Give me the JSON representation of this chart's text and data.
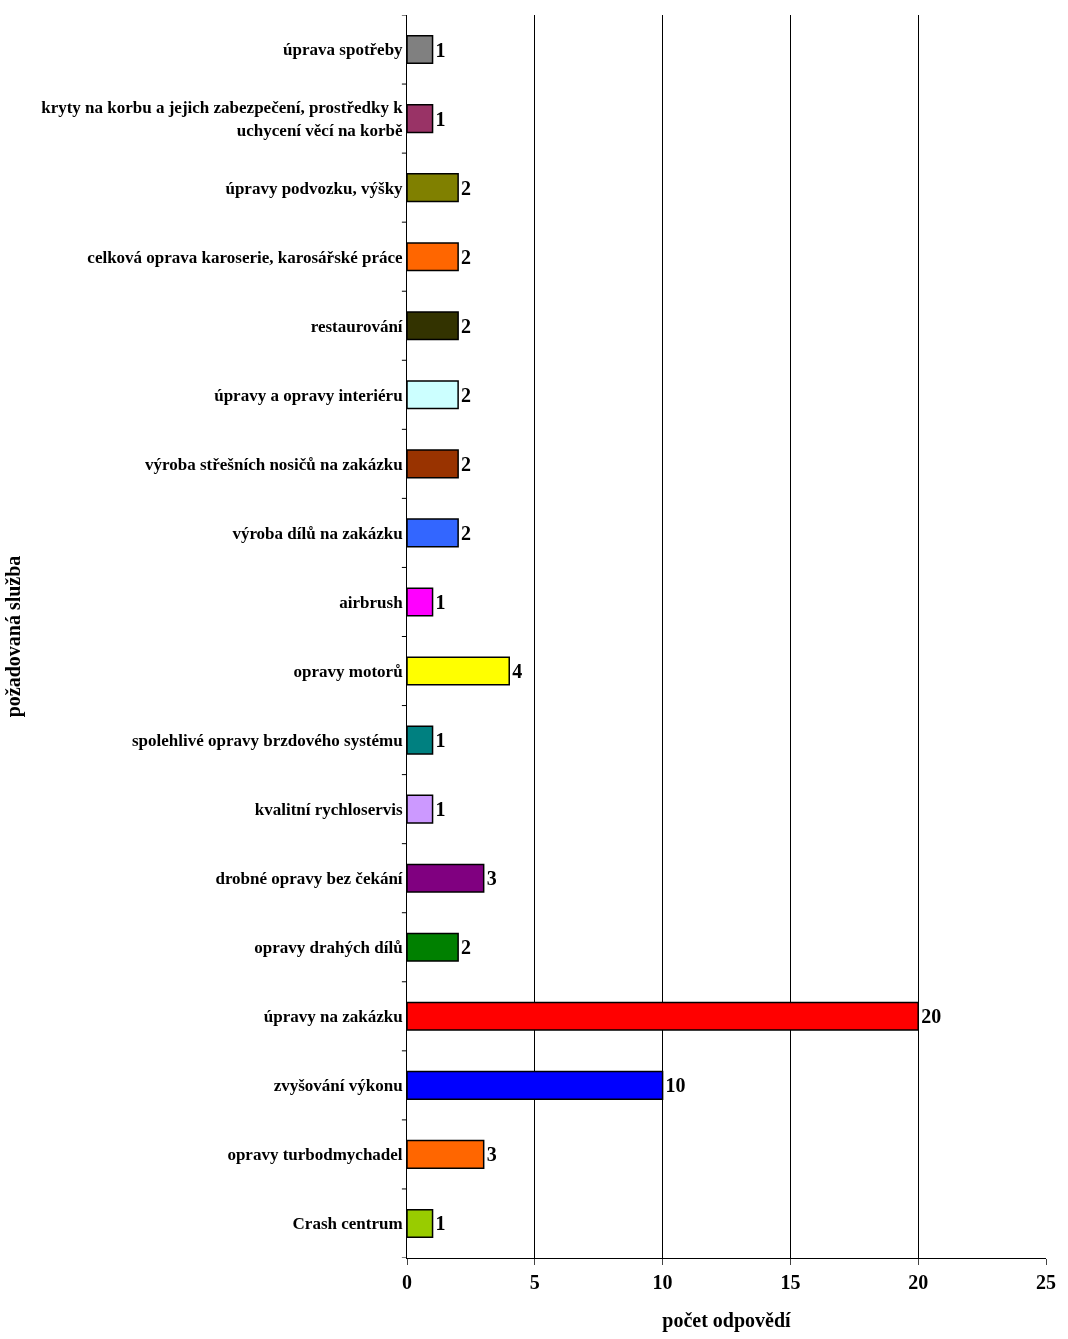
{
  "chart_data": {
    "type": "bar",
    "orientation": "horizontal",
    "xlabel": "počet odpovědí",
    "ylabel": "požadovaná služba",
    "categories": [
      "úprava spotřeby",
      "kryty na korbu a jejich zabezpečení, prostředky k uchycení věcí na korbě",
      "úpravy podvozku, výšky",
      "celková oprava karoserie, karosářské práce",
      "restaurování",
      "úpravy a opravy interiéru",
      "výroba střešních nosičů na zakázku",
      "výroba dílů na zakázku",
      "airbrush",
      "opravy motorů",
      "spolehlivé opravy brzdového systému",
      "kvalitní rychloservis",
      "drobné opravy bez čekání",
      "opravy drahých dílů",
      "úpravy na zakázku",
      "zvyšování výkonu",
      "opravy turbodmychadel",
      "Crash centrum"
    ],
    "values": [
      1,
      1,
      2,
      2,
      2,
      2,
      2,
      2,
      1,
      4,
      1,
      1,
      3,
      2,
      20,
      10,
      3,
      1
    ],
    "colors": [
      "#808080",
      "#993366",
      "#808000",
      "#ff6600",
      "#333300",
      "#ccffff",
      "#993300",
      "#3366ff",
      "#ff00ff",
      "#ffff00",
      "#008080",
      "#cc99ff",
      "#800080",
      "#008000",
      "#ff0000",
      "#0000ff",
      "#ff6600",
      "#99cc00"
    ],
    "xlim": [
      0,
      25
    ],
    "xticks": [
      0,
      5,
      10,
      15,
      20,
      25
    ],
    "grid": "x",
    "data_labels": true
  }
}
